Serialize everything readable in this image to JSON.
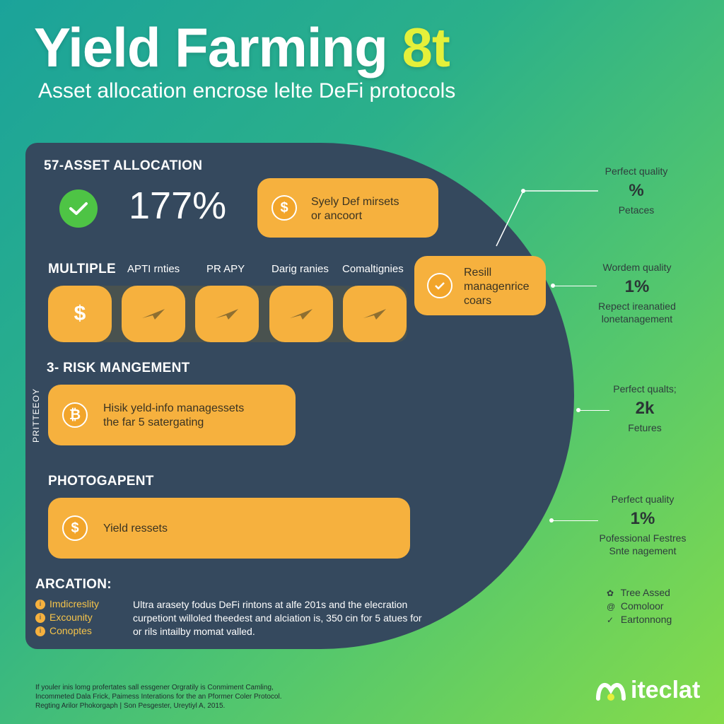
{
  "header": {
    "title_main": "Yield Farming",
    "title_accent": "8t",
    "subtitle": "Asset allocation encrose lelte DeFi protocols"
  },
  "colors": {
    "panel": "#35495e",
    "card": "#f6b13e",
    "check": "#4ec445",
    "accent_title": "#e4f03a"
  },
  "allocation": {
    "heading": "57-ASSET ALLOCATION",
    "percent": "177%",
    "icon": "check-icon",
    "card_text_line1": "Syely Def mirsets",
    "card_text_line2": "or ancoort"
  },
  "multiple": {
    "heading": "MULTIPLE",
    "columns": [
      "APTI rnties",
      "PR APY",
      "Darig ranies",
      "Comaltignies"
    ],
    "tiles": [
      {
        "icon": "dollar-icon",
        "glyph": "$"
      },
      {
        "icon": "plane-icon",
        "glyph": ""
      },
      {
        "icon": "plane-icon",
        "glyph": ""
      },
      {
        "icon": "plane-icon",
        "glyph": ""
      },
      {
        "icon": "plane-icon",
        "glyph": ""
      }
    ],
    "result_card": {
      "line1": "Resill",
      "line2": "managenrice",
      "line3": "coars"
    }
  },
  "risk": {
    "heading": "3- RISK MANGEMENT",
    "side_label": "PRITTEEOY",
    "card_line1": "Hisik yeld-info managessets",
    "card_line2": "the far 5 satergating"
  },
  "photo": {
    "heading": "PHOTOGAPENT",
    "card_text": "Yield ressets"
  },
  "arcation": {
    "heading": "ARCATION:",
    "legend": [
      "Imdicreslity",
      "Excounity",
      "Conoptes"
    ],
    "text": "Ultra arasety fodus DeFi rintons at alfe 201s and the elecration curpetiont willoled theedest and alciation is, 350 cin for 5 atues for or rils intailby momat valled."
  },
  "callouts": [
    {
      "quality": "Perfect quality",
      "value": "%",
      "desc": "Petaces"
    },
    {
      "quality": "Wordem quality",
      "value": "1%",
      "desc": "Repect ireanatied lonetanagement"
    },
    {
      "quality": "Perfect qualts;",
      "value": "2k",
      "desc": "Fetures"
    },
    {
      "quality": "Perfect quality",
      "value": "1%",
      "desc": "Pofessional Festres Snte nagement"
    }
  ],
  "features": [
    {
      "icon": "gear-icon",
      "label": "Tree Assed"
    },
    {
      "icon": "at-icon",
      "label": "Comoloor"
    },
    {
      "icon": "check-icon",
      "label": "Eartonnong"
    }
  ],
  "footer": {
    "line1": "If youler inis lomg profertates sall essgener Orgratily is Conmiment Camling,",
    "line2": "Incommeted Dala Frick, Paimess Interations for the an Pformer Coler Protocol.",
    "line3": "Regting Arilor Phokorgaph | Son Pesgester, Ureytiyl A, 2015."
  },
  "brand": {
    "name": "iteclat",
    "icon": "brand-logo-icon"
  }
}
